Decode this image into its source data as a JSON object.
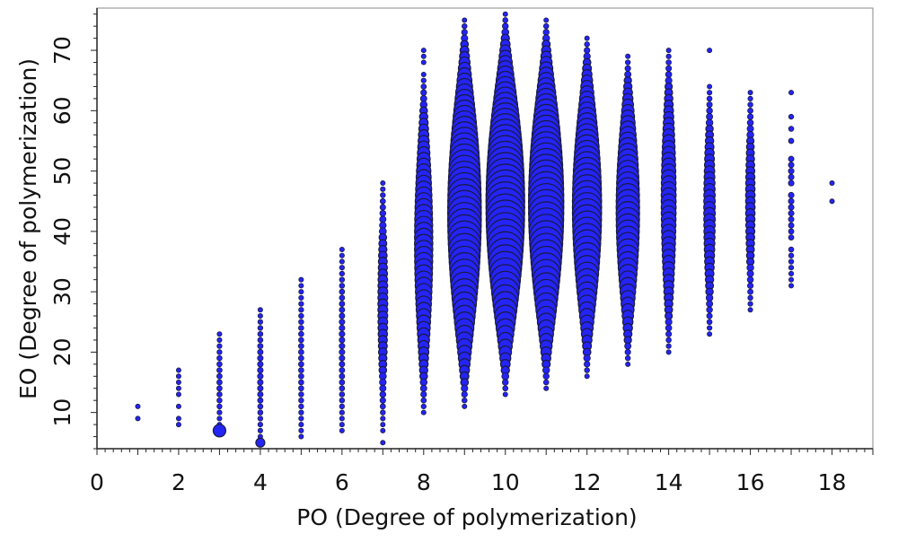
{
  "chart_data": {
    "type": "scatter",
    "subtype": "bubble",
    "title": "",
    "xlabel": "PO (Degree of polymerization)",
    "ylabel": "EO (Degree of polymerization)",
    "xlim": [
      0,
      19
    ],
    "ylim": [
      4,
      77
    ],
    "x_ticks": [
      "0",
      "2",
      "4",
      "6",
      "8",
      "10",
      "12",
      "14",
      "16",
      "18"
    ],
    "y_ticks": [
      "10",
      "20",
      "30",
      "40",
      "50",
      "60",
      "70"
    ],
    "grid": false,
    "legend": "none",
    "marker_color": "#2424f5",
    "marker_edge_color": "#1a1a40",
    "columns": [
      {
        "po": 1,
        "eo": [
          9,
          11
        ],
        "peak_relative_size": 0
      },
      {
        "po": 2,
        "eo": [
          8,
          9,
          11,
          13,
          14,
          15,
          16,
          17
        ],
        "peak_relative_size": 0
      },
      {
        "po": 3,
        "eo_range": [
          8,
          23
        ],
        "peak_relative_size": 0.02
      },
      {
        "po": 4,
        "eo_range": [
          6,
          27
        ],
        "peak_relative_size": 0.03
      },
      {
        "po": 5,
        "eo_range": [
          6,
          32
        ],
        "peak_relative_size": 0.02
      },
      {
        "po": 6,
        "eo_range": [
          7,
          37
        ],
        "peak_relative_size": 0.03
      },
      {
        "po": 7,
        "eo_range": [
          8,
          48
        ],
        "eo_extra": [
          5,
          7
        ],
        "peak_relative_size": 0.15
      },
      {
        "po": 8,
        "eo_range": [
          10,
          66
        ],
        "eo_extra": [
          68,
          69,
          70
        ],
        "peak_relative_size": 0.4
      },
      {
        "po": 9,
        "eo_range": [
          11,
          75
        ],
        "peak_relative_size": 0.85
      },
      {
        "po": 10,
        "eo_range": [
          13,
          76
        ],
        "peak_relative_size": 1.0
      },
      {
        "po": 11,
        "eo_range": [
          14,
          75
        ],
        "peak_relative_size": 0.9
      },
      {
        "po": 12,
        "eo_range": [
          16,
          72
        ],
        "peak_relative_size": 0.72
      },
      {
        "po": 13,
        "eo_range": [
          18,
          69
        ],
        "peak_relative_size": 0.55
      },
      {
        "po": 14,
        "eo_range": [
          20,
          70
        ],
        "peak_relative_size": 0.3
      },
      {
        "po": 15,
        "eo_range": [
          23,
          64
        ],
        "eo_extra": [
          70
        ],
        "peak_relative_size": 0.2
      },
      {
        "po": 16,
        "eo_range": [
          27,
          63
        ],
        "peak_relative_size": 0.14
      },
      {
        "po": 17,
        "eo": [
          31,
          32,
          33,
          34,
          35,
          36,
          37,
          39,
          40,
          41,
          42,
          43,
          44,
          45,
          46,
          48,
          49,
          50,
          51,
          52,
          55,
          57,
          59,
          63
        ],
        "peak_relative_size": 0.03
      },
      {
        "po": 18,
        "eo": [
          45,
          48
        ],
        "peak_relative_size": 0
      }
    ],
    "highlighted_points": [
      {
        "po": 3,
        "eo": 7,
        "relative_size": 0.22
      },
      {
        "po": 4,
        "eo": 5,
        "relative_size": 0.12
      }
    ]
  }
}
